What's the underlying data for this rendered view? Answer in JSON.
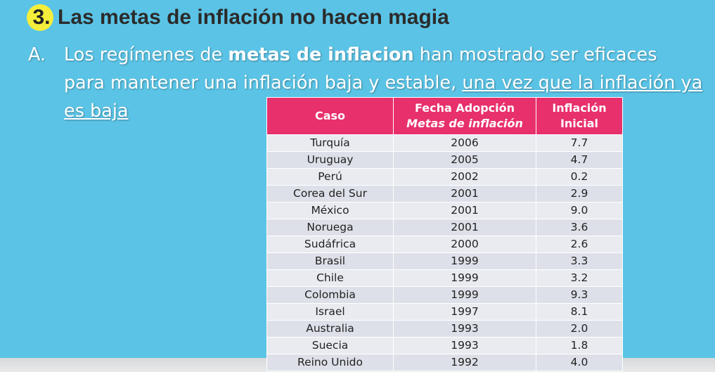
{
  "heading": {
    "number": "3.",
    "title": "Las metas de inflación no hacen magia"
  },
  "bullet": {
    "marker": "A.",
    "text_1": "Los regímenes de ",
    "text_bold": "metas de inflacion",
    "text_2": " han mostrado ser eficaces para mantener una inflación baja y estable, ",
    "text_underlined": "una vez que la inflación ya es baja"
  },
  "table": {
    "headers": {
      "caso": "Caso",
      "fecha_line1": "Fecha Adopción",
      "fecha_line2": "Metas de inflación",
      "inflacion_line1": "Inflación",
      "inflacion_line2": "Inicial"
    },
    "rows": [
      {
        "caso": "Turquía",
        "fecha": "2006",
        "inflacion": "7.7"
      },
      {
        "caso": "Uruguay",
        "fecha": "2005",
        "inflacion": "4.7"
      },
      {
        "caso": "Perú",
        "fecha": "2002",
        "inflacion": "0.2"
      },
      {
        "caso": "Corea del Sur",
        "fecha": "2001",
        "inflacion": "2.9"
      },
      {
        "caso": "México",
        "fecha": "2001",
        "inflacion": "9.0"
      },
      {
        "caso": "Noruega",
        "fecha": "2001",
        "inflacion": "3.6"
      },
      {
        "caso": "Sudáfrica",
        "fecha": "2000",
        "inflacion": "2.6"
      },
      {
        "caso": "Brasil",
        "fecha": "1999",
        "inflacion": "3.3"
      },
      {
        "caso": "Chile",
        "fecha": "1999",
        "inflacion": "3.2"
      },
      {
        "caso": "Colombia",
        "fecha": "1999",
        "inflacion": "9.3"
      },
      {
        "caso": "Israel",
        "fecha": "1997",
        "inflacion": "8.1"
      },
      {
        "caso": "Australia",
        "fecha": "1993",
        "inflacion": "2.0"
      },
      {
        "caso": "Suecia",
        "fecha": "1993",
        "inflacion": "1.8"
      },
      {
        "caso": "Reino Unido",
        "fecha": "1992",
        "inflacion": "4.0"
      }
    ]
  },
  "colors": {
    "background": "#5bc4e6",
    "header_pink": "#e8306c",
    "badge_yellow": "#f5ee3a"
  }
}
